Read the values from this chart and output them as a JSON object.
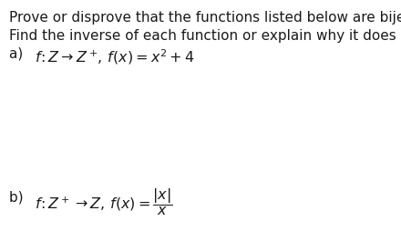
{
  "background_color": "#ffffff",
  "text_color": "#1a1a1a",
  "line1": "Prove or disprove that the functions listed below are bijective.",
  "line2": "Find the inverse of each function or explain why it does not exist",
  "part_a_prefix": "a)  ",
  "part_a_math": "$f\\!:Z \\to Z^+\\!,\\, f(x) = x^2 + 4$",
  "part_b_prefix": "b)  ",
  "part_b_math": "$f\\!:Z^+ \\to Z,\\, f(x) = \\dfrac{|x|}{x}$",
  "font_size": 11.0,
  "math_font_size": 11.5,
  "fig_width": 4.4,
  "fig_height": 2.65,
  "dpi": 100
}
